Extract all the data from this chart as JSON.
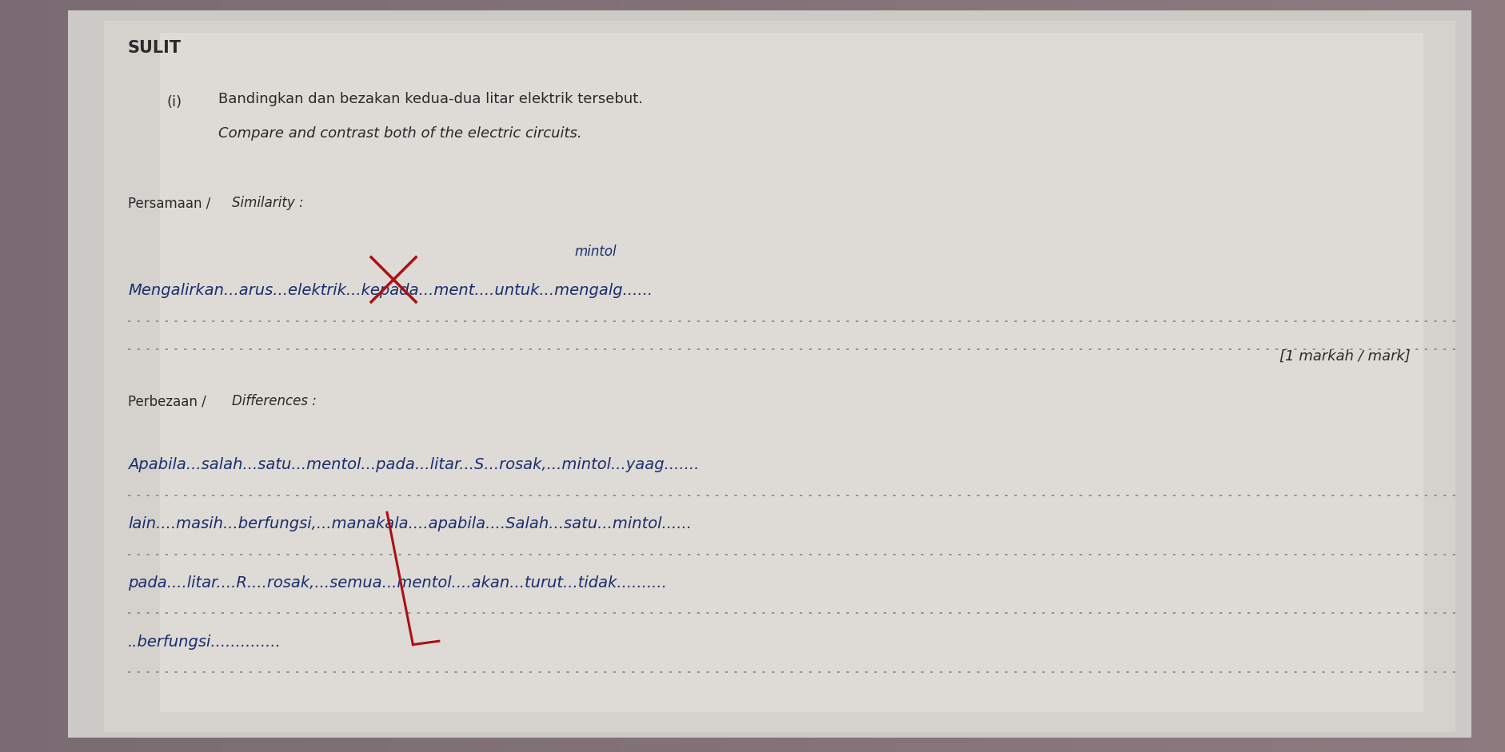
{
  "bg_color": "#7a6b72",
  "page_color_center": "#d8d5d0",
  "page_color_edge": "#aaa8a5",
  "sulit_text": "SULIT",
  "q_number": "(i)",
  "q_malay": "Bandingkan dan bezakan kedua-dua litar elektrik tersebut.",
  "q_english": "Compare and contrast both of the electric circuits.",
  "persamaan_label": "Persamaan / Similarity :",
  "similarity_above": "mintol",
  "similarity_line": "Mengalirkan...arus...elektrik...kepada...ment....untuk...mengalg......",
  "mark_text": "[1 markah / mark]",
  "perbezaan_label": "Perbezaan / Differences :",
  "diff_line1": "Apabila...salah...satu...mentol...pada...litar...S...rosak,...mintol...yaag.......",
  "diff_line2": "lain....masih...berfungsi,...manakala....apabila....Salah...satu...mintol......",
  "diff_line3": "pada....litar....R....rosak,...semua...mentol....akan...turut...tidak..........",
  "diff_line4": "..berfungsi..............",
  "handwriting_color": "#1a2e6e",
  "print_color": "#2a2a2a",
  "red_mark_color": "#aa1111",
  "dot_color": "#555555"
}
